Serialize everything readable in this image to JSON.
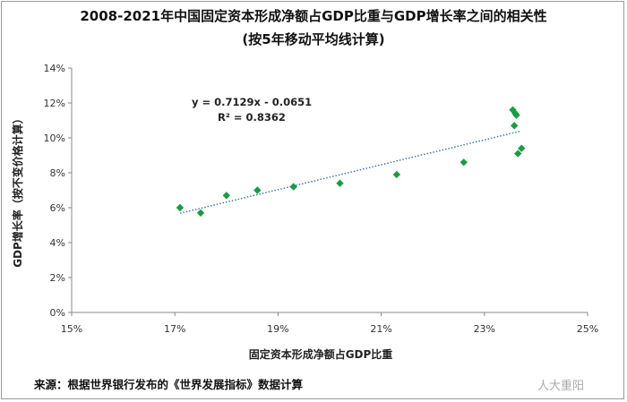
{
  "title_line1": "2008-2021年中国固定资本形成净额占GDP比重与GDP增长率之间的相关性",
  "title_line2": "(按5年移动平均线计算)",
  "source": "来源：根据世界银行发布的《世界发展指标》数据计算",
  "watermark": "人大重阳",
  "colors": {
    "marker": "#1a9b45",
    "trend": "#3a6fa8",
    "axis": "#888888"
  },
  "chart_data": {
    "type": "scatter",
    "xlabel": "固定资本形成净额占GDP比重",
    "ylabel": "GDP增长率（按不变价格计算）",
    "xlim": [
      0.15,
      0.25
    ],
    "ylim": [
      0,
      0.14
    ],
    "x_ticks": [
      {
        "v": 0.15,
        "label": "15%"
      },
      {
        "v": 0.17,
        "label": "17%"
      },
      {
        "v": 0.19,
        "label": "19%"
      },
      {
        "v": 0.21,
        "label": "21%"
      },
      {
        "v": 0.23,
        "label": "23%"
      },
      {
        "v": 0.25,
        "label": "25%"
      }
    ],
    "y_ticks": [
      {
        "v": 0.0,
        "label": "0%"
      },
      {
        "v": 0.02,
        "label": "2%"
      },
      {
        "v": 0.04,
        "label": "4%"
      },
      {
        "v": 0.06,
        "label": "6%"
      },
      {
        "v": 0.08,
        "label": "8%"
      },
      {
        "v": 0.1,
        "label": "10%"
      },
      {
        "v": 0.12,
        "label": "12%"
      },
      {
        "v": 0.14,
        "label": "14%"
      }
    ],
    "points": [
      {
        "x": 0.171,
        "y": 0.06
      },
      {
        "x": 0.175,
        "y": 0.057
      },
      {
        "x": 0.18,
        "y": 0.067
      },
      {
        "x": 0.186,
        "y": 0.07
      },
      {
        "x": 0.193,
        "y": 0.072
      },
      {
        "x": 0.202,
        "y": 0.074
      },
      {
        "x": 0.213,
        "y": 0.079
      },
      {
        "x": 0.226,
        "y": 0.086
      },
      {
        "x": 0.2355,
        "y": 0.116
      },
      {
        "x": 0.236,
        "y": 0.114
      },
      {
        "x": 0.2362,
        "y": 0.113
      },
      {
        "x": 0.2358,
        "y": 0.107
      },
      {
        "x": 0.2372,
        "y": 0.094
      },
      {
        "x": 0.2365,
        "y": 0.091
      }
    ],
    "trendline": {
      "type": "linear",
      "slope": 0.7129,
      "intercept": -0.0651,
      "x_range": [
        0.171,
        0.237
      ],
      "equation": "y = 0.7129x - 0.0651",
      "r2_label": "R² = 0.8362"
    },
    "grid": false,
    "legend": "none"
  }
}
